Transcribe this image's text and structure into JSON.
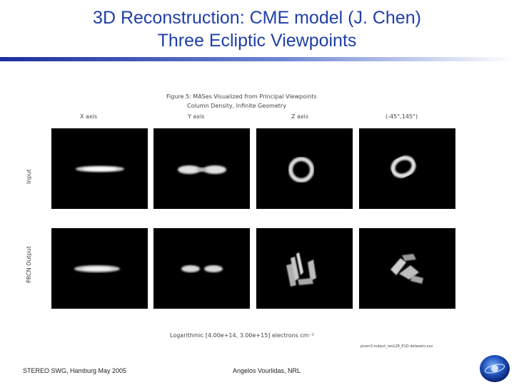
{
  "slide": {
    "title_line1": "3D Reconstruction: CME model (J. Chen)",
    "title_line2": "Three Ecliptic Viewpoints"
  },
  "figure": {
    "caption_line1": "Figure 5: MASes Visualized from Principal Viewpoints",
    "caption_line2": "Column Density, Infinite Geometry",
    "columns": [
      "X axis",
      "Y axis",
      "Z axis",
      "(-45°,145°)"
    ],
    "rows": [
      "Input",
      "PRCN Output"
    ],
    "colorbar_label": "Logarithmic [4.00e+14, 3.00e+15] electrons cm⁻²",
    "filename": "pixon3-output_res128_E1D-datasets.xxx"
  },
  "footer": {
    "left": "STEREO SWG, Hamburg May 2005",
    "center": "Angelos Vourlidas, NRL"
  },
  "colors": {
    "title": "#1f3fa8",
    "rule_start": "#1a2f9c",
    "rule_end": "#ffffff",
    "panel_bg": "#000000"
  },
  "icons": {
    "logo": "stereo-logo-icon"
  }
}
